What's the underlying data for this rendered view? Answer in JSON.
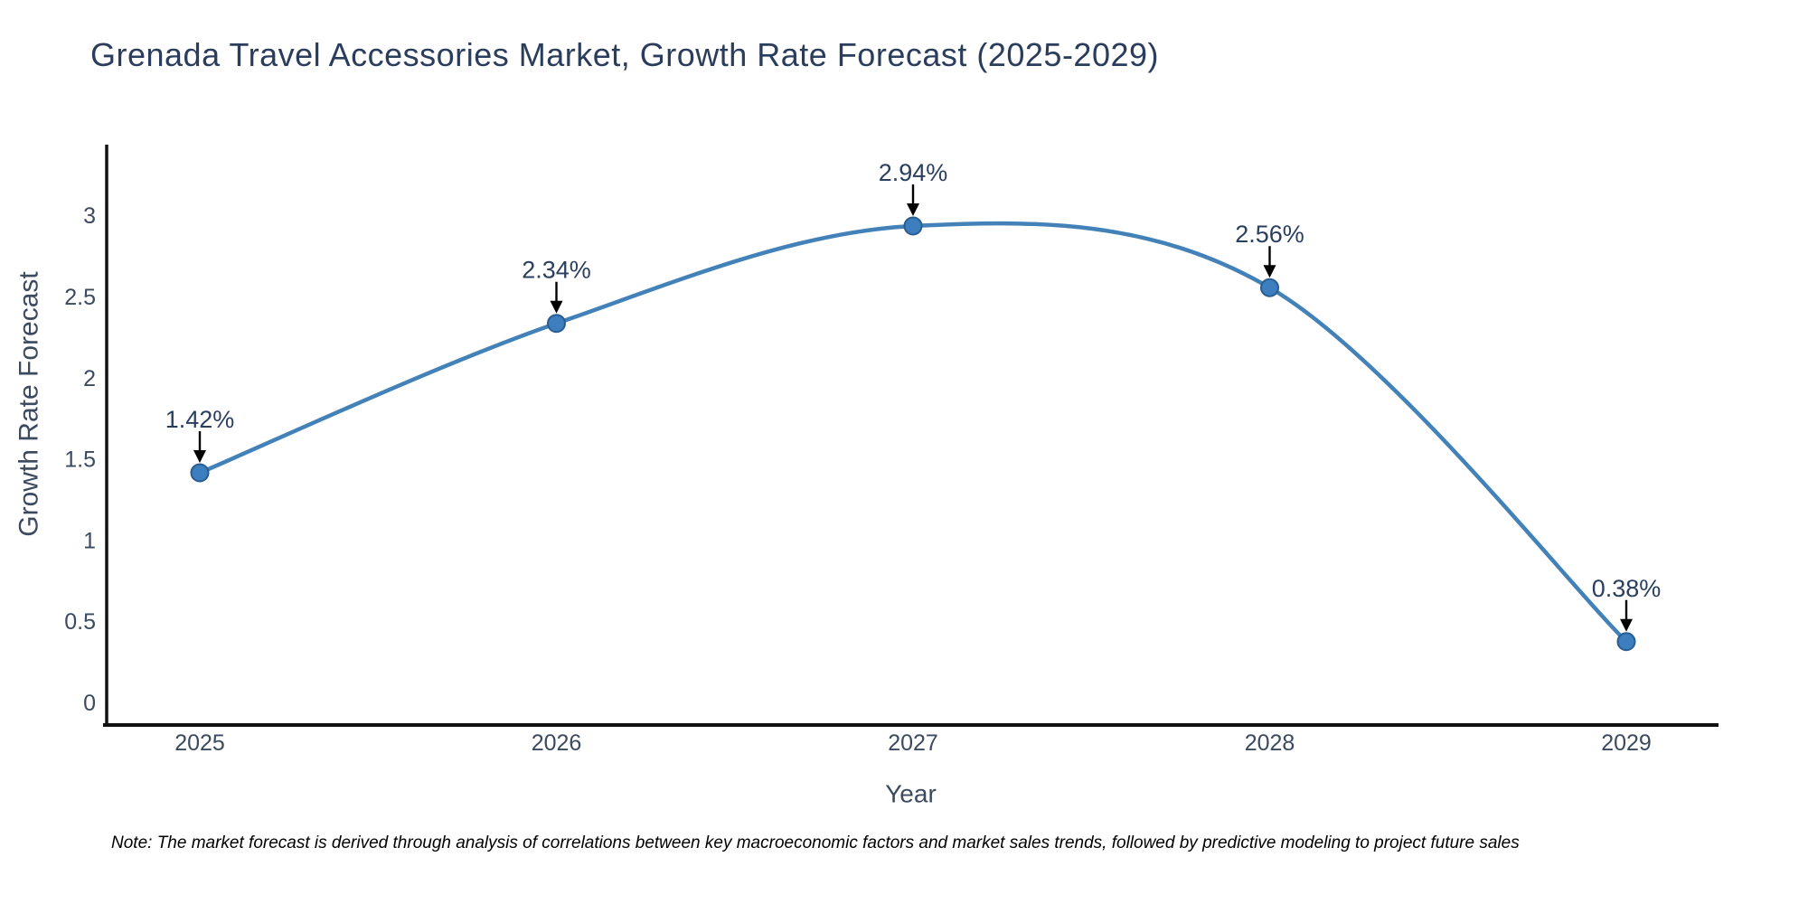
{
  "title": "Grenada Travel Accessories Market, Growth Rate Forecast (2025-2029)",
  "note": "Note: The market forecast is derived through analysis of correlations between key macroeconomic factors and market sales trends, followed by predictive modeling to project future sales",
  "chart_data": {
    "type": "line",
    "line_shape": "spline",
    "marker": "circle",
    "title": "Grenada Travel Accessories Market, Growth Rate Forecast (2025-2029)",
    "xlabel": "Year",
    "ylabel": "Growth Rate Forecast",
    "categories": [
      "2025",
      "2026",
      "2027",
      "2028",
      "2029"
    ],
    "series": [
      {
        "name": "Growth Rate Forecast",
        "values": [
          1.42,
          2.34,
          2.94,
          2.56,
          0.38
        ]
      }
    ],
    "point_labels": [
      "1.42%",
      "2.34%",
      "2.94%",
      "2.56%",
      "0.38%"
    ],
    "yticks": [
      0,
      0.5,
      1,
      1.5,
      2,
      2.5,
      3
    ],
    "ylim": [
      -0.13,
      3.45
    ],
    "grid": false,
    "legend_position": "none",
    "colors": {
      "line": "#4382b8",
      "marker_fill": "#3d7ebf",
      "marker_edge": "#2a5d8f",
      "axis_line": "#111111",
      "tick_text": "#3b4a5f",
      "axis_title_text": "#3b4a5f",
      "annotation_text": "#2a3f5f",
      "arrow": "#000000"
    }
  }
}
